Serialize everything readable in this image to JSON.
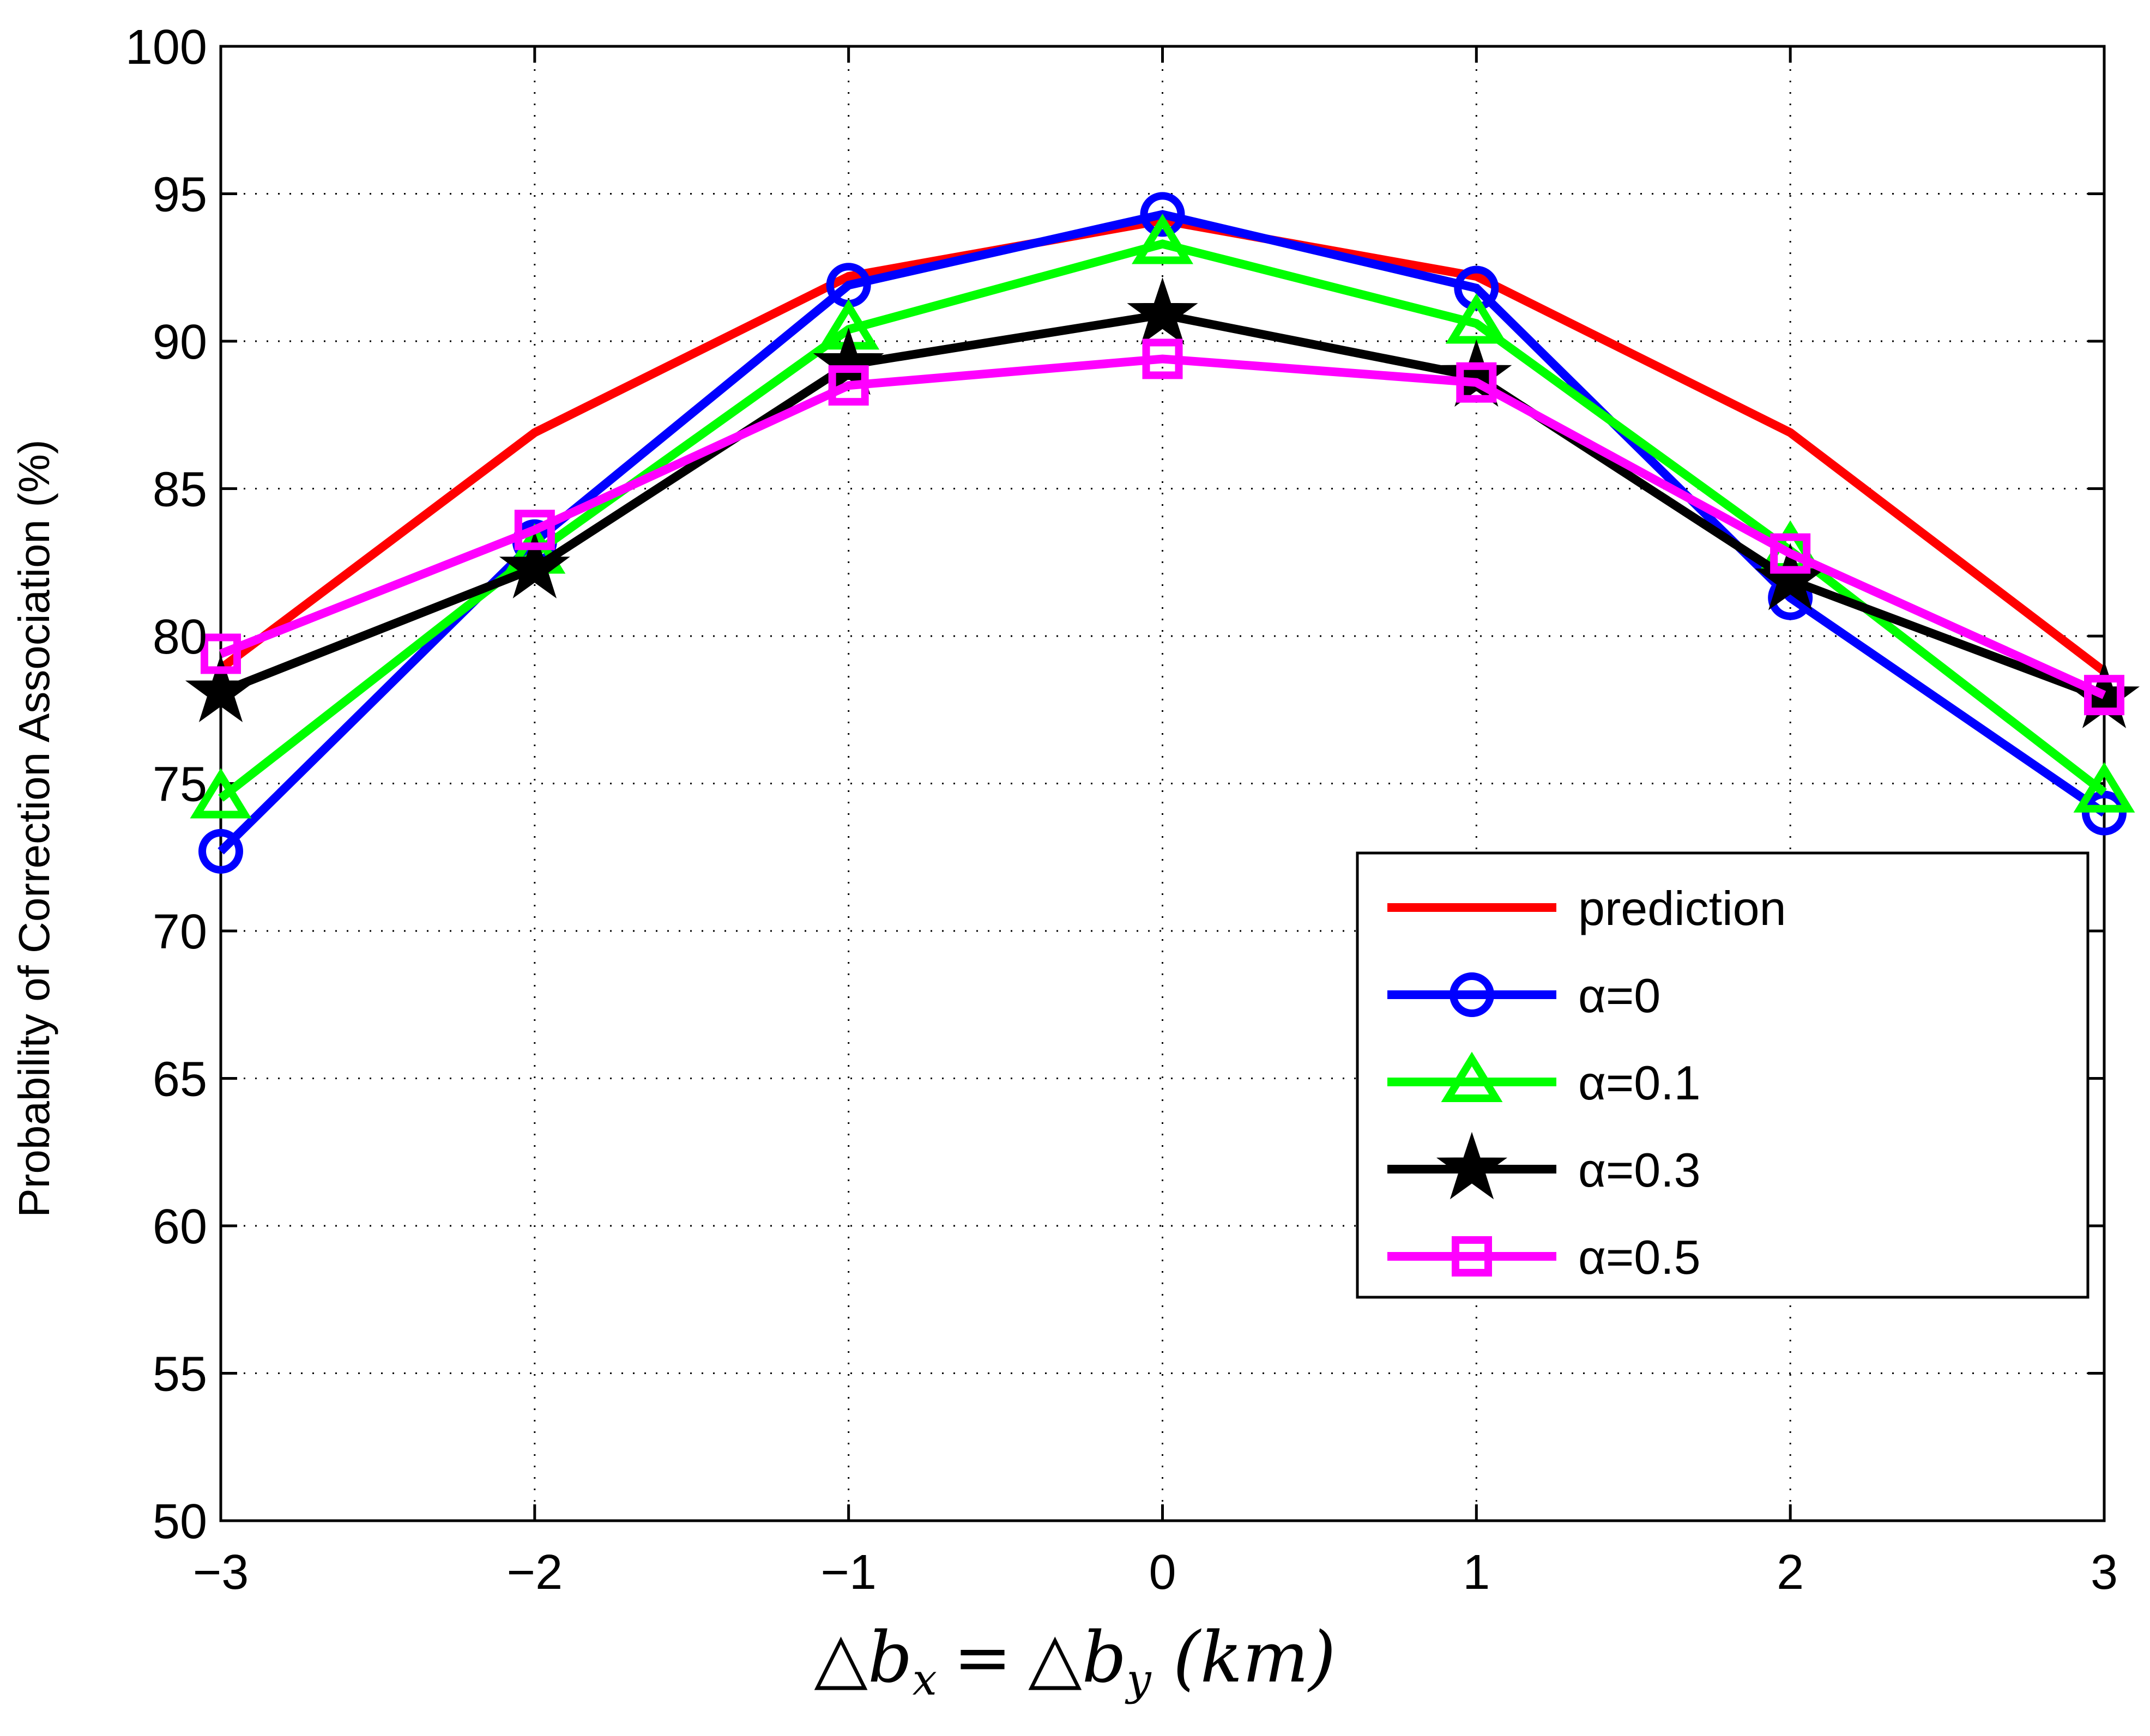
{
  "chart_data": {
    "type": "line",
    "title": "",
    "xlabel": {
      "full": "△b_x = △b_y (km)",
      "tri": "△",
      "b": "b",
      "sub_x": "x",
      "eq": "=",
      "sub_y": "y",
      "unit": "(km)"
    },
    "ylabel": "Probability of Correction Association (%)",
    "xlim": [
      -3,
      3
    ],
    "ylim": [
      50,
      100
    ],
    "x": [
      -3,
      -2,
      -1,
      0,
      1,
      2,
      3
    ],
    "x_tick_labels": [
      "−3",
      "−2",
      "−1",
      "0",
      "1",
      "2",
      "3"
    ],
    "y_ticks": [
      50,
      55,
      60,
      65,
      70,
      75,
      80,
      85,
      90,
      95,
      100
    ],
    "y_tick_labels": [
      "50",
      "55",
      "60",
      "65",
      "70",
      "75",
      "80",
      "85",
      "90",
      "95",
      "100"
    ],
    "grid": true,
    "legend_position": "lower-right",
    "series": [
      {
        "name": "prediction",
        "color": "#ff0000",
        "marker": "none",
        "values": [
          78.9,
          86.9,
          92.2,
          94.1,
          92.2,
          86.9,
          78.8
        ]
      },
      {
        "name": "α=0",
        "color": "#0000ff",
        "marker": "circle",
        "values": [
          72.7,
          83.2,
          91.9,
          94.3,
          91.8,
          81.3,
          74.0
        ]
      },
      {
        "name": "α=0.1",
        "color": "#00ff00",
        "marker": "triangle",
        "values": [
          74.5,
          82.8,
          90.4,
          93.3,
          90.6,
          82.9,
          74.7
        ]
      },
      {
        "name": "α=0.3",
        "color": "#000000",
        "marker": "star",
        "values": [
          78.1,
          82.3,
          89.2,
          90.9,
          88.8,
          81.9,
          77.9
        ]
      },
      {
        "name": "α=0.5",
        "color": "#ff00ff",
        "marker": "square",
        "values": [
          79.4,
          83.6,
          88.5,
          89.4,
          88.6,
          82.8,
          78.0
        ]
      }
    ]
  }
}
